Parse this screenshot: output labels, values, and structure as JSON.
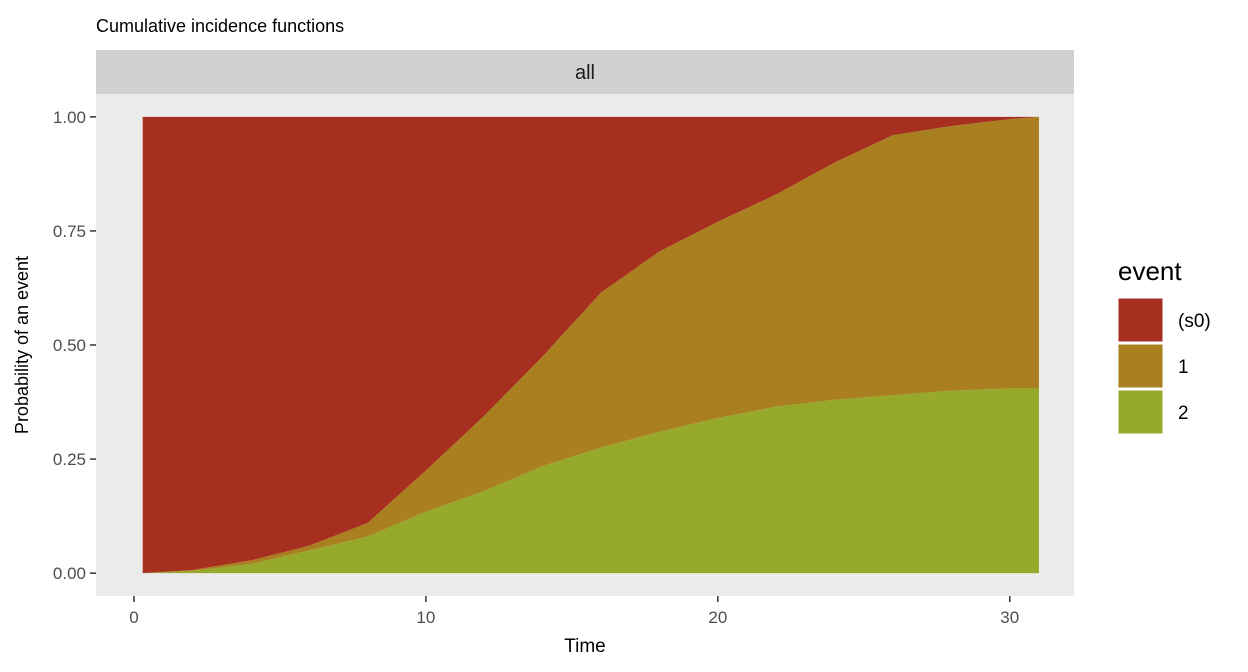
{
  "chart_data": {
    "type": "area",
    "title": "Cumulative incidence functions",
    "facet_label": "all",
    "xlabel": "Time",
    "ylabel": "Probability of an event",
    "xlim": [
      -1.3,
      32.2
    ],
    "ylim": [
      -0.05,
      1.05
    ],
    "x_ticks": [
      0,
      10,
      20,
      30
    ],
    "y_ticks": [
      0.0,
      0.25,
      0.5,
      0.75,
      1.0
    ],
    "y_tick_labels": [
      "0.00",
      "0.25",
      "0.50",
      "0.75",
      "1.00"
    ],
    "stacked": true,
    "grid": false,
    "legend": {
      "title": "event",
      "position": "right",
      "entries": [
        "(s0)",
        "1",
        "2"
      ]
    },
    "x": [
      0.3,
      2,
      4,
      6,
      8,
      10,
      12,
      14,
      16,
      18,
      20,
      22,
      24,
      26,
      28,
      30,
      31
    ],
    "series": [
      {
        "name": "2",
        "color": "#97a92b",
        "values": [
          0.0,
          0.005,
          0.02,
          0.05,
          0.08,
          0.135,
          0.18,
          0.235,
          0.275,
          0.31,
          0.34,
          0.365,
          0.38,
          0.39,
          0.4,
          0.405,
          0.405
        ]
      },
      {
        "name": "1",
        "color": "#aa7f1f",
        "values": [
          0.0,
          0.002,
          0.008,
          0.01,
          0.03,
          0.09,
          0.165,
          0.24,
          0.34,
          0.395,
          0.43,
          0.465,
          0.52,
          0.57,
          0.58,
          0.59,
          0.595
        ]
      },
      {
        "name": "(s0)",
        "color": "#a72f20",
        "values": [
          1.0,
          0.993,
          0.972,
          0.94,
          0.89,
          0.775,
          0.655,
          0.525,
          0.385,
          0.295,
          0.23,
          0.17,
          0.1,
          0.04,
          0.02,
          0.005,
          0.0
        ]
      }
    ]
  },
  "colors": {
    "panel_bg": "#ebebeb",
    "strip_bg": "#d1d1d1",
    "text": "#1a1a1a",
    "tick_text": "#4d4d4d"
  }
}
